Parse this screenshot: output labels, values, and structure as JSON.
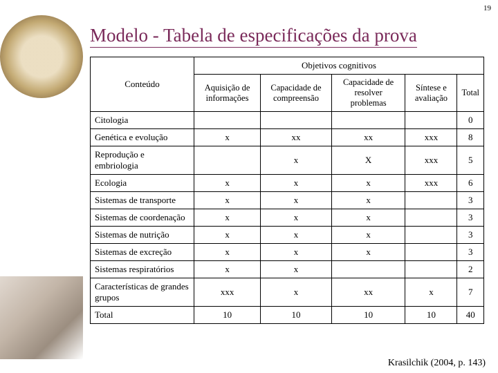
{
  "page_number": "19",
  "title": "Modelo - Tabela de especificações da prova",
  "colors": {
    "title_color": "#7a2a5a",
    "border_color": "#000000",
    "background": "#ffffff"
  },
  "table": {
    "row_header_col": "Conteúdo",
    "group_header": "Objetivos cognitivos",
    "columns": [
      "Aquisição de informações",
      "Capacidade de compreensão",
      "Capacidade de resolver problemas",
      "Síntese e avaliação",
      "Total"
    ],
    "rows": [
      {
        "label": "Citologia",
        "cells": [
          "",
          "",
          "",
          "",
          "0"
        ]
      },
      {
        "label": "Genética e evolução",
        "cells": [
          "x",
          "xx",
          "xx",
          "xxx",
          "8"
        ]
      },
      {
        "label": "Reprodução e embriologia",
        "cells": [
          "",
          "x",
          "X",
          "xxx",
          "5"
        ]
      },
      {
        "label": "Ecologia",
        "cells": [
          "x",
          "x",
          "x",
          "xxx",
          "6"
        ]
      },
      {
        "label": "Sistemas de transporte",
        "cells": [
          "x",
          "x",
          "x",
          "",
          "3"
        ]
      },
      {
        "label": "Sistemas de coordenação",
        "cells": [
          "x",
          "x",
          "x",
          "",
          "3"
        ]
      },
      {
        "label": "Sistemas de nutrição",
        "cells": [
          "x",
          "x",
          "x",
          "",
          "3"
        ]
      },
      {
        "label": "Sistemas de excreção",
        "cells": [
          "x",
          "x",
          "x",
          "",
          "3"
        ]
      },
      {
        "label": "Sistemas respiratórios",
        "cells": [
          "x",
          "x",
          "",
          "",
          "2"
        ]
      },
      {
        "label": "Características de grandes grupos",
        "cells": [
          "xxx",
          "x",
          "xx",
          "x",
          "7"
        ]
      },
      {
        "label": "Total",
        "cells": [
          "10",
          "10",
          "10",
          "10",
          "40"
        ]
      }
    ]
  },
  "footer": "Krasilchik (2004, p. 143)"
}
